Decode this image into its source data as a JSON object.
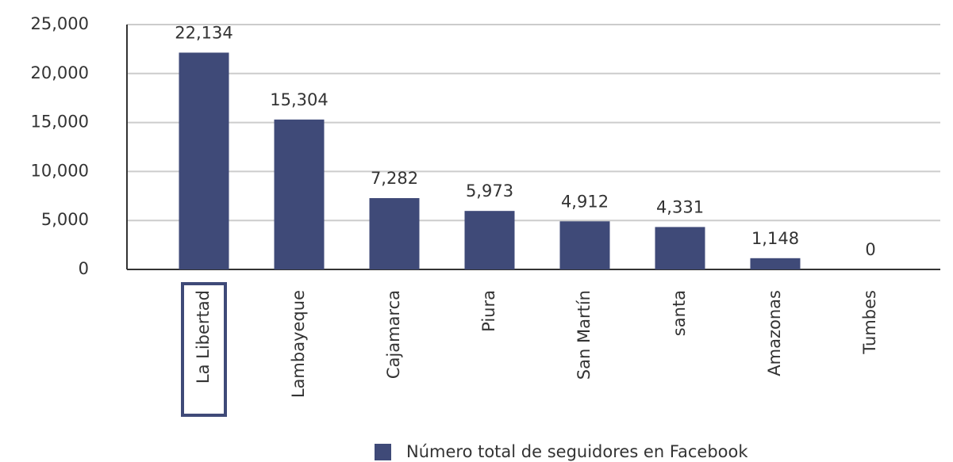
{
  "chart_data": {
    "type": "bar",
    "categories": [
      "La Libertad",
      "Lambayeque",
      "Cajamarca",
      "Piura",
      "San Martín",
      "santa",
      "Amazonas",
      "Tumbes"
    ],
    "series": [
      {
        "name": "Número total de seguidores en Facebook",
        "color": "#3f4a78",
        "values": [
          22134,
          15304,
          7282,
          5973,
          4912,
          4331,
          1148,
          0
        ],
        "value_labels": [
          "22,134",
          "15,304",
          "7,282",
          "5,973",
          "4,912",
          "4,331",
          "1,148",
          "0"
        ]
      }
    ],
    "ylim": [
      0,
      25000
    ],
    "yticks": [
      0,
      {
        "value": 5000,
        "label": "5,000"
      },
      {
        "value": 10000,
        "label": "10,000"
      },
      {
        "value": 15000,
        "label": "15,000"
      },
      {
        "value": 20000,
        "label": "20,000"
      },
      {
        "value": 25000,
        "label": "25,000"
      }
    ],
    "grid": true,
    "legend": "bottom"
  }
}
